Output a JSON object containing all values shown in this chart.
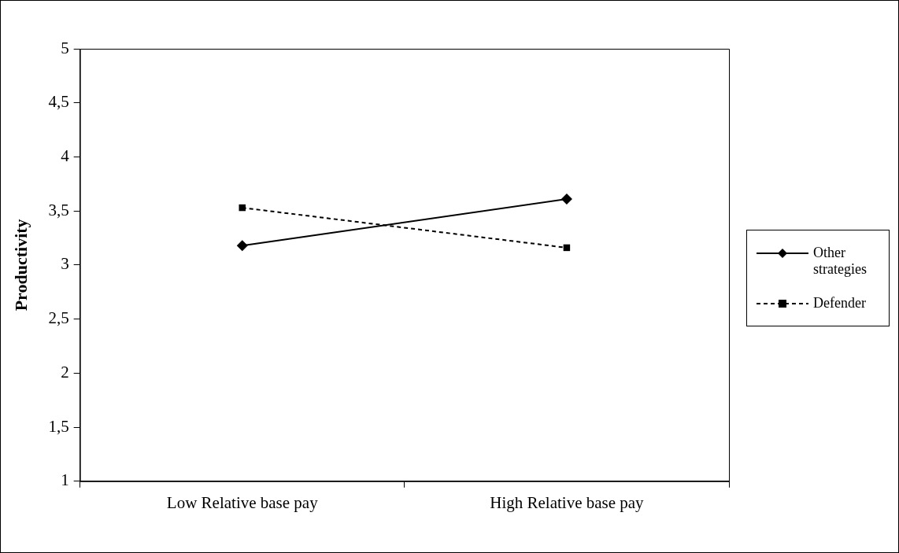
{
  "chart_data": {
    "type": "line",
    "ylabel": "Productivity",
    "categories": [
      "Low Relative base pay",
      "High Relative base pay"
    ],
    "series": [
      {
        "name": "Other strategies",
        "color": "#000000",
        "values": [
          3.18,
          3.61
        ],
        "marker": "diamond",
        "line_style": "solid"
      },
      {
        "name": "Defender",
        "color": "#000000",
        "values": [
          3.53,
          3.16
        ],
        "marker": "square",
        "line_style": "dashed"
      }
    ],
    "ylim": [
      1,
      5
    ],
    "yticks": [
      {
        "value": 1,
        "label": "1"
      },
      {
        "value": 1.5,
        "label": "1,5"
      },
      {
        "value": 2,
        "label": "2"
      },
      {
        "value": 2.5,
        "label": "2,5"
      },
      {
        "value": 3,
        "label": "3"
      },
      {
        "value": 3.5,
        "label": "3,5"
      },
      {
        "value": 4,
        "label": "4"
      },
      {
        "value": 4.5,
        "label": "4,5"
      },
      {
        "value": 5,
        "label": "5"
      }
    ],
    "grid": false,
    "legend": "right"
  }
}
